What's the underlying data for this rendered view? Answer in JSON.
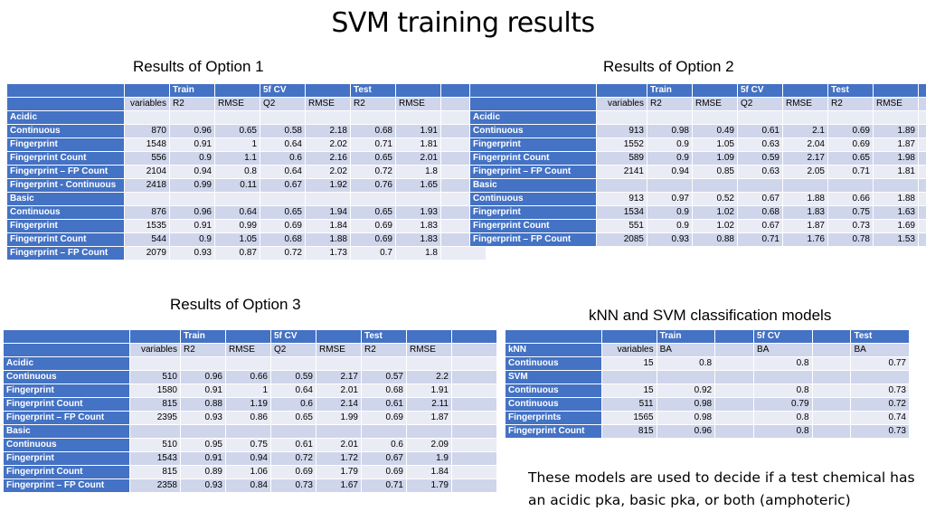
{
  "title": "SVM training results",
  "option1": {
    "caption": "Results of Option 1",
    "groups": [
      "Train",
      "5f CV",
      "Test"
    ],
    "cols": [
      "variables",
      "R2",
      "RMSE",
      "Q2",
      "RMSE",
      "R2",
      "RMSE"
    ],
    "rows": [
      {
        "label": "Acidic",
        "values": []
      },
      {
        "label": "Continuous",
        "values": [
          "870",
          "0.96",
          "0.65",
          "0.58",
          "2.18",
          "0.68",
          "1.91"
        ]
      },
      {
        "label": "Fingerprint",
        "values": [
          "1548",
          "0.91",
          "1",
          "0.64",
          "2.02",
          "0.71",
          "1.81"
        ]
      },
      {
        "label": "Fingerprint Count",
        "values": [
          "556",
          "0.9",
          "1.1",
          "0.6",
          "2.16",
          "0.65",
          "2.01"
        ]
      },
      {
        "label": "Fingerprint – FP Count",
        "values": [
          "2104",
          "0.94",
          "0.8",
          "0.64",
          "2.02",
          "0.72",
          "1.8"
        ]
      },
      {
        "label": "Fingerprint - Continuous",
        "values": [
          "2418",
          "0.99",
          "0.11",
          "0.67",
          "1.92",
          "0.76",
          "1.65"
        ]
      },
      {
        "label": "Basic",
        "values": []
      },
      {
        "label": "Continuous",
        "values": [
          "876",
          "0.96",
          "0.64",
          "0.65",
          "1.94",
          "0.65",
          "1.93"
        ]
      },
      {
        "label": "Fingerprint",
        "values": [
          "1535",
          "0.91",
          "0.99",
          "0.69",
          "1.84",
          "0.69",
          "1.83"
        ]
      },
      {
        "label": "Fingerprint Count",
        "values": [
          "544",
          "0.9",
          "1.05",
          "0.68",
          "1.88",
          "0.69",
          "1.83"
        ]
      },
      {
        "label": "Fingerprint – FP Count",
        "values": [
          "2079",
          "0.93",
          "0.87",
          "0.72",
          "1.73",
          "0.7",
          "1.8"
        ]
      }
    ]
  },
  "option2": {
    "caption": "Results of Option 2",
    "groups": [
      "Train",
      "5f CV",
      "Test"
    ],
    "cols": [
      "variables",
      "R2",
      "RMSE",
      "Q2",
      "RMSE",
      "R2",
      "RMSE"
    ],
    "rows": [
      {
        "label": "Acidic",
        "values": []
      },
      {
        "label": "Continuous",
        "values": [
          "913",
          "0.98",
          "0.49",
          "0.61",
          "2.1",
          "0.69",
          "1.89"
        ]
      },
      {
        "label": "Fingerprint",
        "values": [
          "1552",
          "0.9",
          "1.05",
          "0.63",
          "2.04",
          "0.69",
          "1.87"
        ]
      },
      {
        "label": "Fingerprint Count",
        "values": [
          "589",
          "0.9",
          "1.09",
          "0.59",
          "2.17",
          "0.65",
          "1.98"
        ]
      },
      {
        "label": "Fingerprint – FP Count",
        "values": [
          "2141",
          "0.94",
          "0.85",
          "0.63",
          "2.05",
          "0.71",
          "1.81"
        ]
      },
      {
        "label": "Basic",
        "values": []
      },
      {
        "label": "Continuous",
        "values": [
          "913",
          "0.97",
          "0.52",
          "0.67",
          "1.88",
          "0.66",
          "1.88"
        ]
      },
      {
        "label": "Fingerprint",
        "values": [
          "1534",
          "0.9",
          "1.02",
          "0.68",
          "1.83",
          "0.75",
          "1.63"
        ]
      },
      {
        "label": "Fingerprint Count",
        "values": [
          "551",
          "0.9",
          "1.02",
          "0.67",
          "1.87",
          "0.73",
          "1.69"
        ]
      },
      {
        "label": "Fingerprint – FP Count",
        "values": [
          "2085",
          "0.93",
          "0.88",
          "0.71",
          "1.76",
          "0.78",
          "1.53"
        ]
      }
    ]
  },
  "option3": {
    "caption": "Results of Option 3",
    "groups": [
      "Train",
      "5f CV",
      "Test"
    ],
    "cols": [
      "variables",
      "R2",
      "RMSE",
      "Q2",
      "RMSE",
      "R2",
      "RMSE"
    ],
    "rows": [
      {
        "label": "Acidic",
        "values": []
      },
      {
        "label": "Continuous",
        "values": [
          "510",
          "0.96",
          "0.66",
          "0.59",
          "2.17",
          "0.57",
          "2.2"
        ]
      },
      {
        "label": "Fingerprint",
        "values": [
          "1580",
          "0.91",
          "1",
          "0.64",
          "2.01",
          "0.68",
          "1.91"
        ]
      },
      {
        "label": "Fingerprint Count",
        "values": [
          "815",
          "0.88",
          "1.19",
          "0.6",
          "2.14",
          "0.61",
          "2.11"
        ]
      },
      {
        "label": "Fingerprint – FP Count",
        "values": [
          "2395",
          "0.93",
          "0.86",
          "0.65",
          "1.99",
          "0.69",
          "1.87"
        ]
      },
      {
        "label": "Basic",
        "values": []
      },
      {
        "label": "Continuous",
        "values": [
          "510",
          "0.95",
          "0.75",
          "0.61",
          "2.01",
          "0.6",
          "2.09"
        ]
      },
      {
        "label": "Fingerprint",
        "values": [
          "1543",
          "0.91",
          "0.94",
          "0.72",
          "1.72",
          "0.67",
          "1.9"
        ]
      },
      {
        "label": "Fingerprint Count",
        "values": [
          "815",
          "0.89",
          "1.06",
          "0.69",
          "1.79",
          "0.69",
          "1.84"
        ]
      },
      {
        "label": "Fingerprint – FP Count",
        "values": [
          "2358",
          "0.93",
          "0.84",
          "0.73",
          "1.67",
          "0.71",
          "1.79"
        ]
      }
    ]
  },
  "knn_svm": {
    "caption": "kNN and SVM classification models",
    "groups": [
      "Train",
      "5f CV",
      "Test"
    ],
    "cols": [
      "variables",
      "BA",
      "BA",
      "BA"
    ],
    "rows": [
      {
        "label": "kNN",
        "values": [
          "variables",
          "BA",
          "",
          "BA",
          "",
          "BA"
        ],
        "header": true
      },
      {
        "label": "Continuous",
        "values": [
          "15",
          "0.8",
          "",
          "0.8",
          "",
          "0.77"
        ]
      },
      {
        "label": "SVM",
        "values": []
      },
      {
        "label": "Continuous",
        "values": [
          "15",
          "0.92",
          "",
          "0.8",
          "",
          "0.73"
        ]
      },
      {
        "label": "Continuous",
        "values": [
          "511",
          "0.98",
          "",
          "0.79",
          "",
          "0.72"
        ]
      },
      {
        "label": "Fingerprints",
        "values": [
          "1565",
          "0.98",
          "",
          "0.8",
          "",
          "0.74"
        ]
      },
      {
        "label": "Fingerprint Count",
        "values": [
          "815",
          "0.96",
          "",
          "0.8",
          "",
          "0.73"
        ]
      }
    ]
  },
  "note": "These models are used to decide if a test chemical has an acidic pka, basic pka, or both (amphoteric)"
}
